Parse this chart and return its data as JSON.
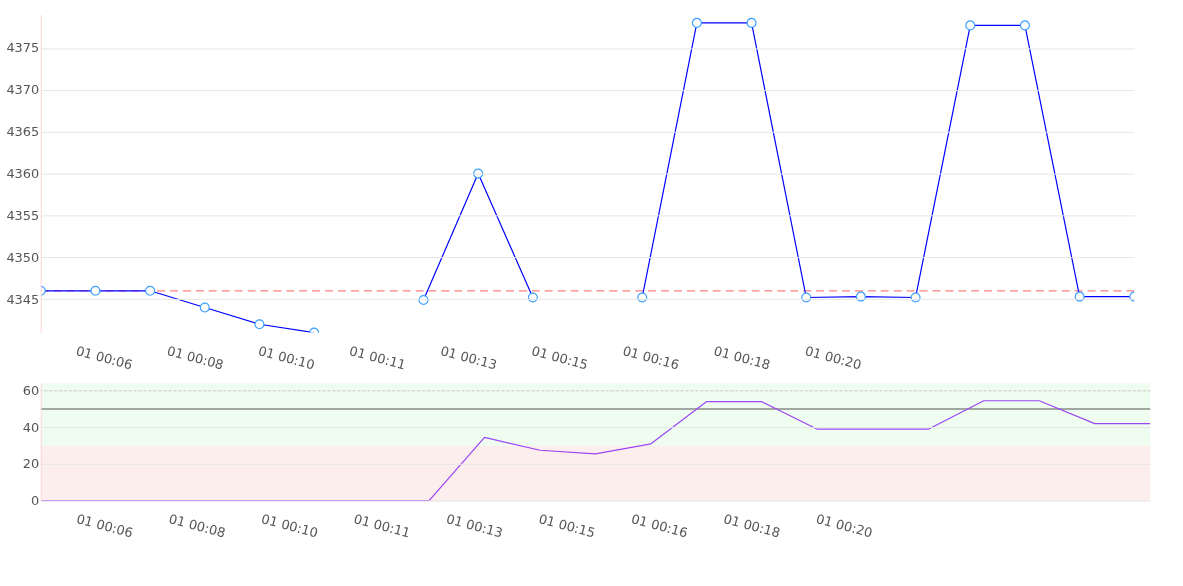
{
  "chart_data": [
    {
      "type": "line",
      "x": [
        "--01-01T00:06",
        "--01-01T00:07",
        "--01-01T00:08",
        "--01-01T00:09",
        "--01-01T00:10",
        "--01-01T00:11",
        "--01-01T00:12",
        "--01-01T00:13",
        "--01-01T00:14",
        "--01-01T00:15",
        "--01-01T00:16",
        "--01-01T00:17",
        "--01-01T00:18",
        "--01-01T00:19",
        "--01-01T00:20",
        "--01-01T00:21",
        "--01-01T00:22",
        "--01-01T00:23",
        "--01-01T00:24",
        "--01-01T00:25",
        "--01-01T00:26"
      ],
      "series": [
        {
          "color": "#0000ff",
          "values": [
            4346,
            4346,
            4346,
            4344,
            4342,
            4341,
            null,
            4344.9,
            4360,
            4345.2,
            null,
            4345.2,
            4378,
            4378,
            4345.2,
            4345.3,
            4345.2,
            4377.7,
            4377.7,
            4345.3,
            4345.3
          ]
        }
      ],
      "xlim": [
        "--01-01T00:06",
        "--01-01T00:26"
      ],
      "xticks": [
        {
          "value": "--01-01T00:06:40",
          "label": "01 00:06"
        },
        {
          "value": "--01-01T00:08:20",
          "label": "01 00:08"
        },
        {
          "value": "--01-01T00:10:00",
          "label": "01 00:10"
        },
        {
          "value": "--01-01T00:11:40",
          "label": "01 00:11"
        },
        {
          "value": "--01-01T00:13:20",
          "label": "01 00:13"
        },
        {
          "value": "--01-01T00:15:00",
          "label": "01 00:15"
        },
        {
          "value": "--01-01T00:16:40",
          "label": "01 00:16"
        },
        {
          "value": "--01-01T00:18:20",
          "label": "01 00:18"
        },
        {
          "value": "--01-01T00:20:00",
          "label": "01 00:20"
        }
      ],
      "ylim": [
        4341,
        4379
      ],
      "yticks": [
        4345,
        4350,
        4355,
        4360,
        4365,
        4370,
        4375
      ],
      "grid": "y",
      "marker": "circle",
      "ref_lines": [
        {
          "axis": "y",
          "value": 4346,
          "color": "#ff8080",
          "line_style": "dashed"
        }
      ]
    },
    {
      "type": "line",
      "x": [
        "--01-01T00:06",
        "--01-01T00:07",
        "--01-01T00:08",
        "--01-01T00:09",
        "--01-01T00:10",
        "--01-01T00:11",
        "--01-01T00:12",
        "--01-01T00:13",
        "--01-01T00:14",
        "--01-01T00:15",
        "--01-01T00:16",
        "--01-01T00:17",
        "--01-01T00:18",
        "--01-01T00:19",
        "--01-01T00:20",
        "--01-01T00:21",
        "--01-01T00:22",
        "--01-01T00:23",
        "--01-01T00:24",
        "--01-01T00:25",
        "--01-01T00:26"
      ],
      "series": [
        {
          "color": "#9b45f5",
          "values": [
            0,
            0,
            0,
            0,
            0,
            0,
            0,
            0,
            34.5,
            27.5,
            25.5,
            31,
            54,
            54,
            39,
            39,
            39,
            54.5,
            54.5,
            42,
            42
          ]
        }
      ],
      "xlim": [
        "--01-01T00:06",
        "--01-01T00:26"
      ],
      "xticks": [
        {
          "value": "--01-01T00:06:40",
          "label": "01 00:06"
        },
        {
          "value": "--01-01T00:08:20",
          "label": "01 00:08"
        },
        {
          "value": "--01-01T00:10:00",
          "label": "01 00:10"
        },
        {
          "value": "--01-01T00:11:40",
          "label": "01 00:11"
        },
        {
          "value": "--01-01T00:13:20",
          "label": "01 00:13"
        },
        {
          "value": "--01-01T00:15:00",
          "label": "01 00:15"
        },
        {
          "value": "--01-01T00:16:40",
          "label": "01 00:16"
        },
        {
          "value": "--01-01T00:18:20",
          "label": "01 00:18"
        },
        {
          "value": "--01-01T00:20:00",
          "label": "01 00:20"
        }
      ],
      "ylim": [
        0,
        64
      ],
      "yticks": [
        0,
        20,
        40,
        60
      ],
      "grid": "y",
      "bands": [
        {
          "axis": "y",
          "from": 0,
          "to": 30,
          "color": "#fdeeee"
        },
        {
          "axis": "y",
          "from": 30,
          "to": 64,
          "color": "#effdf0"
        }
      ],
      "ref_lines": [
        {
          "axis": "y",
          "value": 60,
          "color": "#aaaaaa",
          "line_style": "dotted"
        },
        {
          "axis": "y",
          "value": 50,
          "color": "#555555",
          "line_style": "solid"
        }
      ]
    }
  ]
}
